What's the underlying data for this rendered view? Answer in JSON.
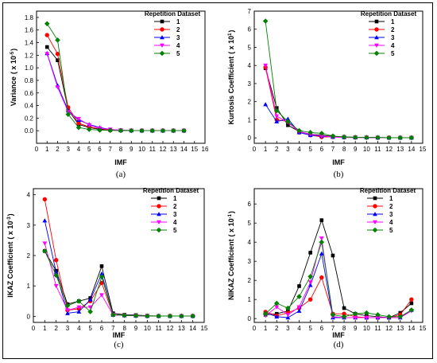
{
  "colors": [
    "#000000",
    "#ff0000",
    "#0000ff",
    "#ff00ff",
    "#008000"
  ],
  "charts": [
    {
      "caption": "(a)",
      "chart_data": {
        "type": "line",
        "xlabel": "IMF",
        "ylabel": "Variance",
        "ylabel_unit": "( x 10",
        "ylabel_exp": "-5",
        "ylabel_close": ")",
        "xlim": [
          0,
          16
        ],
        "ylim": [
          -0.2,
          1.9
        ],
        "xticks": [
          "0",
          "1",
          "2",
          "3",
          "4",
          "5",
          "6",
          "7",
          "8",
          "9",
          "10",
          "11",
          "12",
          "13",
          "14",
          "15",
          "16"
        ],
        "yticks": [
          "0.0",
          "0.2",
          "0.4",
          "0.6",
          "0.8",
          "1.0",
          "1.2",
          "1.4",
          "1.6",
          "1.8"
        ],
        "legend_title": "Repetition Dataset",
        "legend_position": "top-right",
        "x": [
          1,
          2,
          3,
          4,
          5,
          6,
          7,
          8,
          9,
          10,
          11,
          12,
          13,
          14
        ],
        "series": [
          {
            "name": "1",
            "marker": "square",
            "values": [
              1.33,
              1.12,
              0.33,
              0.1,
              0.05,
              0.02,
              0.01,
              0.005,
              0.003,
              0.002,
              0.001,
              0.001,
              0.001,
              0.001
            ]
          },
          {
            "name": "2",
            "marker": "circle",
            "values": [
              1.52,
              1.22,
              0.37,
              0.12,
              0.06,
              0.03,
              0.01,
              0.005,
              0.003,
              0.002,
              0.001,
              0.001,
              0.001,
              0.001
            ]
          },
          {
            "name": "3",
            "marker": "triangle-up",
            "values": [
              1.23,
              0.72,
              0.32,
              0.17,
              0.1,
              0.05,
              0.02,
              0.008,
              0.004,
              0.002,
              0.001,
              0.001,
              0.001,
              0.001
            ]
          },
          {
            "name": "4",
            "marker": "triangle-down",
            "values": [
              1.22,
              0.69,
              0.3,
              0.19,
              0.09,
              0.04,
              0.02,
              0.008,
              0.004,
              0.002,
              0.001,
              0.001,
              0.001,
              0.001
            ]
          },
          {
            "name": "5",
            "marker": "diamond",
            "values": [
              1.7,
              1.44,
              0.26,
              0.05,
              0.02,
              0.01,
              0.005,
              0.003,
              0.002,
              0.001,
              0.001,
              0.001,
              0.001,
              0.001
            ]
          }
        ]
      }
    },
    {
      "caption": "(b)",
      "chart_data": {
        "type": "line",
        "xlabel": "IMF",
        "ylabel": "Kurtosis Coefficient",
        "ylabel_unit": "( x 10",
        "ylabel_exp": "1",
        "ylabel_close": ")",
        "xlim": [
          0,
          15
        ],
        "ylim": [
          -0.3,
          7
        ],
        "xticks": [
          "0",
          "1",
          "2",
          "3",
          "4",
          "5",
          "6",
          "7",
          "8",
          "9",
          "10",
          "11",
          "12",
          "13",
          "14",
          "15"
        ],
        "yticks": [
          "0",
          "1",
          "2",
          "3",
          "4",
          "5",
          "6",
          "7"
        ],
        "legend_title": "Repetition Dataset",
        "legend_position": "top-right",
        "x": [
          1,
          2,
          3,
          4,
          5,
          6,
          7,
          8,
          9,
          10,
          11,
          12,
          13,
          14
        ],
        "series": [
          {
            "name": "1",
            "marker": "square",
            "values": [
              3.85,
              1.65,
              0.7,
              0.35,
              0.2,
              0.15,
              0.08,
              0.05,
              0.03,
              0.02,
              0.02,
              0.01,
              0.01,
              0.01
            ]
          },
          {
            "name": "2",
            "marker": "circle",
            "values": [
              3.9,
              1.0,
              0.9,
              0.3,
              0.15,
              0.05,
              0.05,
              0.03,
              0.02,
              0.02,
              0.01,
              0.01,
              0.01,
              0.01
            ]
          },
          {
            "name": "3",
            "marker": "triangle-up",
            "values": [
              1.85,
              0.9,
              1.05,
              0.3,
              0.15,
              0.1,
              0.05,
              0.03,
              0.02,
              0.02,
              0.01,
              0.01,
              0.01,
              0.01
            ]
          },
          {
            "name": "4",
            "marker": "triangle-down",
            "values": [
              4.0,
              1.2,
              0.85,
              0.35,
              0.2,
              0.1,
              0.05,
              0.03,
              0.02,
              0.02,
              0.01,
              0.01,
              0.01,
              0.01
            ]
          },
          {
            "name": "5",
            "marker": "diamond",
            "values": [
              6.45,
              1.5,
              0.9,
              0.4,
              0.3,
              0.25,
              0.1,
              0.05,
              0.03,
              0.02,
              0.02,
              0.01,
              0.01,
              0.01
            ]
          }
        ]
      }
    },
    {
      "caption": "(c)",
      "chart_data": {
        "type": "line",
        "xlabel": "IMF",
        "ylabel": "IKAZ Coefficient",
        "ylabel_unit": "( x 10",
        "ylabel_exp": "-3",
        "ylabel_close": ")",
        "xlim": [
          0,
          15
        ],
        "ylim": [
          -0.2,
          4.2
        ],
        "xticks": [
          "0",
          "1",
          "2",
          "3",
          "4",
          "5",
          "6",
          "7",
          "8",
          "9",
          "10",
          "11",
          "12",
          "13",
          "14",
          "15"
        ],
        "yticks": [
          "0",
          "1",
          "2",
          "3",
          "4"
        ],
        "legend_title": "Repetition Dataset",
        "legend_position": "top-right",
        "x": [
          1,
          2,
          3,
          4,
          5,
          6,
          7,
          8,
          9,
          10,
          11,
          12,
          13,
          14
        ],
        "series": [
          {
            "name": "1",
            "marker": "square",
            "values": [
              2.15,
              1.5,
              0.4,
              0.5,
              0.6,
              1.65,
              0.1,
              0.05,
              0.04,
              0.02,
              0.01,
              0.01,
              0.01,
              0.01
            ]
          },
          {
            "name": "2",
            "marker": "circle",
            "values": [
              3.85,
              1.85,
              0.2,
              0.25,
              0.5,
              1.1,
              0.05,
              0.03,
              0.02,
              0.01,
              0.01,
              0.01,
              0.01,
              0.01
            ]
          },
          {
            "name": "3",
            "marker": "triangle-up",
            "values": [
              3.15,
              1.45,
              0.1,
              0.15,
              0.55,
              1.4,
              0.05,
              0.03,
              0.02,
              0.01,
              0.01,
              0.01,
              0.01,
              0.01
            ]
          },
          {
            "name": "4",
            "marker": "triangle-down",
            "values": [
              2.4,
              1.0,
              0.2,
              0.3,
              0.3,
              0.7,
              0.05,
              0.03,
              0.02,
              0.01,
              0.01,
              0.01,
              0.01,
              0.01
            ]
          },
          {
            "name": "5",
            "marker": "diamond",
            "values": [
              2.15,
              1.35,
              0.35,
              0.5,
              0.15,
              1.3,
              0.05,
              0.03,
              0.02,
              0.01,
              0.01,
              0.01,
              0.01,
              0.01
            ]
          }
        ]
      }
    },
    {
      "caption": "(d)",
      "chart_data": {
        "type": "line",
        "xlabel": "IMF",
        "ylabel": "NIKAZ Coefficient",
        "ylabel_unit": "( x 10",
        "ylabel_exp": "-1",
        "ylabel_close": ")",
        "xlim": [
          0,
          15
        ],
        "ylim": [
          -0.2,
          6.8
        ],
        "xticks": [
          "0",
          "1",
          "2",
          "3",
          "4",
          "5",
          "6",
          "7",
          "8",
          "9",
          "10",
          "11",
          "12",
          "13",
          "14",
          "15"
        ],
        "yticks": [
          "0",
          "1",
          "2",
          "3",
          "4",
          "5",
          "6"
        ],
        "legend_title": "Repetition Dataset",
        "legend_position": "top-right",
        "x": [
          1,
          2,
          3,
          4,
          5,
          6,
          7,
          8,
          9,
          10,
          11,
          12,
          13,
          14
        ],
        "series": [
          {
            "name": "1",
            "marker": "square",
            "values": [
              0.2,
              0.25,
              0.4,
              1.7,
              3.45,
              5.15,
              3.3,
              0.55,
              0.25,
              0.15,
              0.1,
              0.05,
              0.3,
              0.8
            ]
          },
          {
            "name": "2",
            "marker": "circle",
            "values": [
              0.35,
              0.15,
              0.3,
              0.55,
              1.0,
              2.15,
              0.25,
              0.25,
              0.1,
              0.05,
              0.05,
              0.05,
              0.2,
              1.0
            ]
          },
          {
            "name": "3",
            "marker": "triangle-up",
            "values": [
              0.3,
              0.1,
              0.05,
              0.4,
              1.75,
              3.4,
              0.05,
              0.05,
              0.05,
              0.05,
              0.05,
              0.05,
              0.05,
              0.45
            ]
          },
          {
            "name": "4",
            "marker": "triangle-down",
            "values": [
              0.15,
              0.6,
              0.2,
              0.6,
              1.9,
              4.2,
              0.1,
              0.05,
              0.05,
              0.05,
              0.05,
              0.05,
              0.05,
              0.4
            ]
          },
          {
            "name": "5",
            "marker": "diamond",
            "values": [
              0.25,
              0.8,
              0.55,
              1.15,
              2.2,
              4.0,
              0.2,
              0.1,
              0.25,
              0.3,
              0.2,
              0.1,
              0.1,
              0.45
            ]
          }
        ]
      }
    }
  ]
}
